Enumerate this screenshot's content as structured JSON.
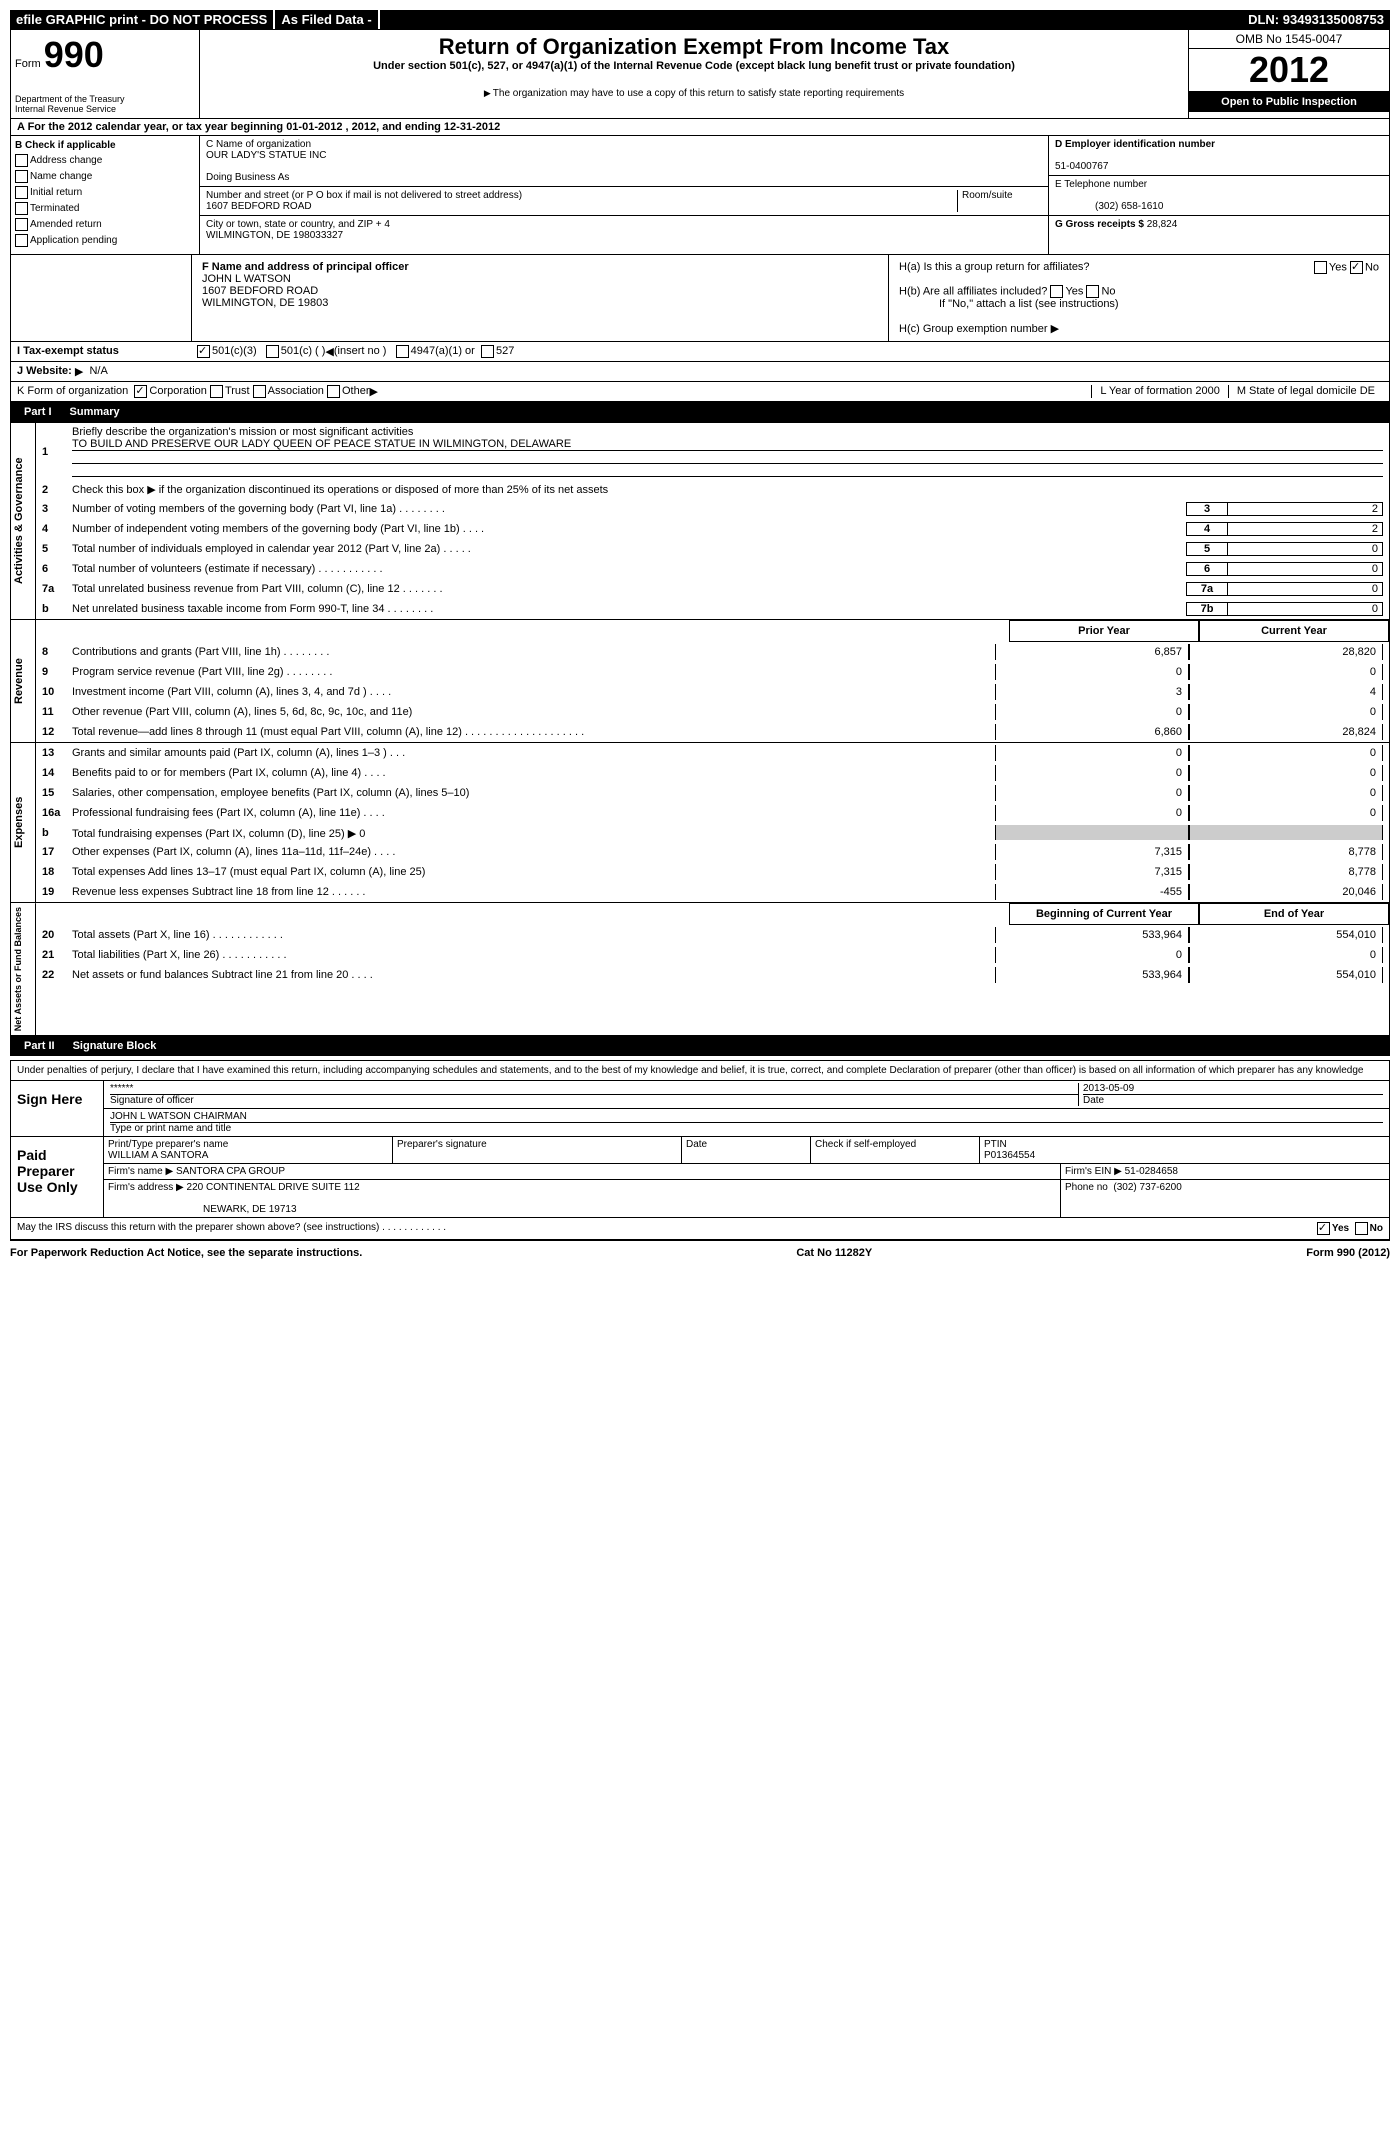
{
  "topbar": {
    "efile": "efile GRAPHIC print - DO NOT PROCESS",
    "asfiled": "As Filed Data -",
    "dln_label": "DLN:",
    "dln": "93493135008753"
  },
  "header": {
    "form_word": "Form",
    "form_num": "990",
    "dept": "Department of the Treasury",
    "irs": "Internal Revenue Service",
    "title": "Return of Organization Exempt From Income Tax",
    "subtitle": "Under section 501(c), 527, or 4947(a)(1) of the Internal Revenue Code (except black lung benefit trust or private foundation)",
    "note": "The organization may have to use a copy of this return to satisfy state reporting requirements",
    "omb": "OMB No 1545-0047",
    "year": "2012",
    "open": "Open to Public Inspection"
  },
  "section_a": "A For the 2012 calendar year, or tax year beginning 01-01-2012    , 2012, and ending 12-31-2012",
  "block_b": {
    "header": "B Check if applicable",
    "items": [
      "Address change",
      "Name change",
      "Initial return",
      "Terminated",
      "Amended return",
      "Application pending"
    ]
  },
  "block_c": {
    "name_label": "C Name of organization",
    "name": "OUR LADY'S STATUE INC",
    "dba_label": "Doing Business As",
    "addr_label": "Number and street (or P O  box if mail is not delivered to street address)",
    "room_label": "Room/suite",
    "addr": "1607 BEDFORD ROAD",
    "city_label": "City or town, state or country, and ZIP + 4",
    "city": "WILMINGTON, DE  198033327"
  },
  "block_d": {
    "label": "D Employer identification number",
    "value": "51-0400767"
  },
  "block_e": {
    "label": "E Telephone number",
    "value": "(302) 658-1610"
  },
  "block_g": {
    "label": "G Gross receipts $",
    "value": "28,824"
  },
  "block_f": {
    "label": "F  Name and address of principal officer",
    "name": "JOHN L WATSON",
    "addr1": "1607 BEDFORD ROAD",
    "addr2": "WILMINGTON, DE  19803"
  },
  "block_h": {
    "ha": "H(a)  Is this a group return for affiliates?",
    "hb": "H(b)  Are all affiliates included?",
    "hb_note": "If \"No,\" attach a list  (see instructions)",
    "hc": "H(c)   Group exemption number",
    "yes": "Yes",
    "no": "No"
  },
  "row_i": {
    "label": "I   Tax-exempt status",
    "opts": [
      "501(c)(3)",
      "501(c) (   )",
      "(insert no )",
      "4947(a)(1) or",
      "527"
    ]
  },
  "row_j": {
    "label": "J   Website:",
    "value": "N/A"
  },
  "row_k": {
    "label": "K Form of organization",
    "opts": [
      "Corporation",
      "Trust",
      "Association",
      "Other"
    ],
    "l_year": "L Year of formation  2000",
    "m_state": "M State of legal domicile  DE"
  },
  "part1": {
    "label": "Part I",
    "title": "Summary"
  },
  "summary": {
    "side1": "Activities & Governance",
    "line1_label": "Briefly describe the organization's mission or most significant activities",
    "line1_text": "TO BUILD AND PRESERVE OUR LADY QUEEN OF PEACE STATUE IN WILMINGTON, DELAWARE",
    "line2": "Check this box ▶     if the organization discontinued its operations or disposed of more than 25% of its net assets",
    "lines_gov": [
      {
        "n": "3",
        "d": "Number of voting members of the governing body (Part VI, line 1a)    .    .    .    .    .    .    .    .",
        "box": "3",
        "v": "2"
      },
      {
        "n": "4",
        "d": "Number of independent voting members of the governing body (Part VI, line 1b)    .    .    .    .",
        "box": "4",
        "v": "2"
      },
      {
        "n": "5",
        "d": "Total number of individuals employed in calendar year 2012 (Part V, line 2a)    .    .    .    .    .",
        "box": "5",
        "v": "0"
      },
      {
        "n": "6",
        "d": "Total number of volunteers (estimate if necessary)    .    .    .    .    .    .    .    .    .    .    .",
        "box": "6",
        "v": "0"
      },
      {
        "n": "7a",
        "d": "Total unrelated business revenue from Part VIII, column (C), line 12    .    .    .    .    .    .    .",
        "box": "7a",
        "v": "0"
      },
      {
        "n": "b",
        "d": "Net unrelated business taxable income from Form 990-T, line 34    .    .    .    .    .    .    .    .",
        "box": "7b",
        "v": "0"
      }
    ],
    "col_prior": "Prior Year",
    "col_current": "Current Year",
    "side2": "Revenue",
    "lines_rev": [
      {
        "n": "8",
        "d": "Contributions and grants (Part VIII, line 1h)    .    .    .    .    .    .    .    .",
        "p": "6,857",
        "c": "28,820"
      },
      {
        "n": "9",
        "d": "Program service revenue (Part VIII, line 2g)    .    .    .    .    .    .    .    .",
        "p": "0",
        "c": "0"
      },
      {
        "n": "10",
        "d": "Investment income (Part VIII, column (A), lines 3, 4, and 7d )    .    .    .    .",
        "p": "3",
        "c": "4"
      },
      {
        "n": "11",
        "d": "Other revenue (Part VIII, column (A), lines 5, 6d, 8c, 9c, 10c, and 11e)",
        "p": "0",
        "c": "0"
      },
      {
        "n": "12",
        "d": "Total revenue—add lines 8 through 11 (must equal Part VIII, column (A), line 12)    .    .    .    .    .    .    .    .    .    .    .    .    .    .    .    .    .    .    .    .",
        "p": "6,860",
        "c": "28,824"
      }
    ],
    "side3": "Expenses",
    "lines_exp": [
      {
        "n": "13",
        "d": "Grants and similar amounts paid (Part IX, column (A), lines 1–3 )    .    .    .",
        "p": "0",
        "c": "0"
      },
      {
        "n": "14",
        "d": "Benefits paid to or for members (Part IX, column (A), line 4)    .    .    .    .",
        "p": "0",
        "c": "0"
      },
      {
        "n": "15",
        "d": "Salaries, other compensation, employee benefits (Part IX, column (A), lines 5–10)",
        "p": "0",
        "c": "0"
      },
      {
        "n": "16a",
        "d": "Professional fundraising fees (Part IX, column (A), line 11e)    .    .    .    .",
        "p": "0",
        "c": "0"
      },
      {
        "n": "b",
        "d": "Total fundraising expenses (Part IX, column (D), line 25) ▶ 0",
        "p": "",
        "c": ""
      },
      {
        "n": "17",
        "d": "Other expenses (Part IX, column (A), lines 11a–11d, 11f–24e)    .    .    .    .",
        "p": "7,315",
        "c": "8,778"
      },
      {
        "n": "18",
        "d": "Total expenses  Add lines 13–17 (must equal Part IX, column (A), line 25)",
        "p": "7,315",
        "c": "8,778"
      },
      {
        "n": "19",
        "d": "Revenue less expenses  Subtract line 18 from line 12    .    .    .    .    .    .",
        "p": "-455",
        "c": "20,046"
      }
    ],
    "col_begin": "Beginning of Current Year",
    "col_end": "End of Year",
    "side4": "Net Assets or Fund Balances",
    "lines_net": [
      {
        "n": "20",
        "d": "Total assets (Part X, line 16)    .    .    .    .    .    .    .    .    .    .    .    .",
        "p": "533,964",
        "c": "554,010"
      },
      {
        "n": "21",
        "d": "Total liabilities (Part X, line 26)    .    .    .    .    .    .    .    .    .    .    .",
        "p": "0",
        "c": "0"
      },
      {
        "n": "22",
        "d": "Net assets or fund balances  Subtract line 21 from line 20    .    .    .    .",
        "p": "533,964",
        "c": "554,010"
      }
    ]
  },
  "part2": {
    "label": "Part II",
    "title": "Signature Block"
  },
  "sig": {
    "perjury": "Under penalties of perjury, I declare that I have examined this return, including accompanying schedules and statements, and to the best of my knowledge and belief, it is true, correct, and complete  Declaration of preparer (other than officer) is based on all information of which preparer has any knowledge",
    "sign_here": "Sign Here",
    "sig_placeholder": "******",
    "sig_officer": "Signature of officer",
    "sig_date": "2013-05-09",
    "date_label": "Date",
    "officer_name": "JOHN L WATSON CHAIRMAN",
    "officer_label": "Type or print name and title",
    "paid_label": "Paid Preparer Use Only",
    "prep_name_label": "Print/Type preparer's name",
    "prep_name": "WILLIAM A SANTORA",
    "prep_sig_label": "Preparer's signature",
    "prep_date_label": "Date",
    "self_emp": "Check       if self-employed",
    "ptin_label": "PTIN",
    "ptin": "P01364554",
    "firm_name_label": "Firm's name    ▶",
    "firm_name": "SANTORA CPA GROUP",
    "firm_ein_label": "Firm's EIN ▶",
    "firm_ein": "51-0284658",
    "firm_addr_label": "Firm's address ▶",
    "firm_addr": "220 CONTINENTAL DRIVE SUITE 112",
    "firm_city": "NEWARK, DE  19713",
    "firm_phone_label": "Phone no",
    "firm_phone": "(302) 737-6200",
    "discuss": "May the IRS discuss this return with the preparer shown above? (see instructions)    .    .    .    .    .    .    .    .    .    .    .    .",
    "yes": "Yes",
    "no": "No"
  },
  "footer": {
    "left": "For Paperwork Reduction Act Notice, see the separate instructions.",
    "center": "Cat No 11282Y",
    "right": "Form 990 (2012)"
  }
}
